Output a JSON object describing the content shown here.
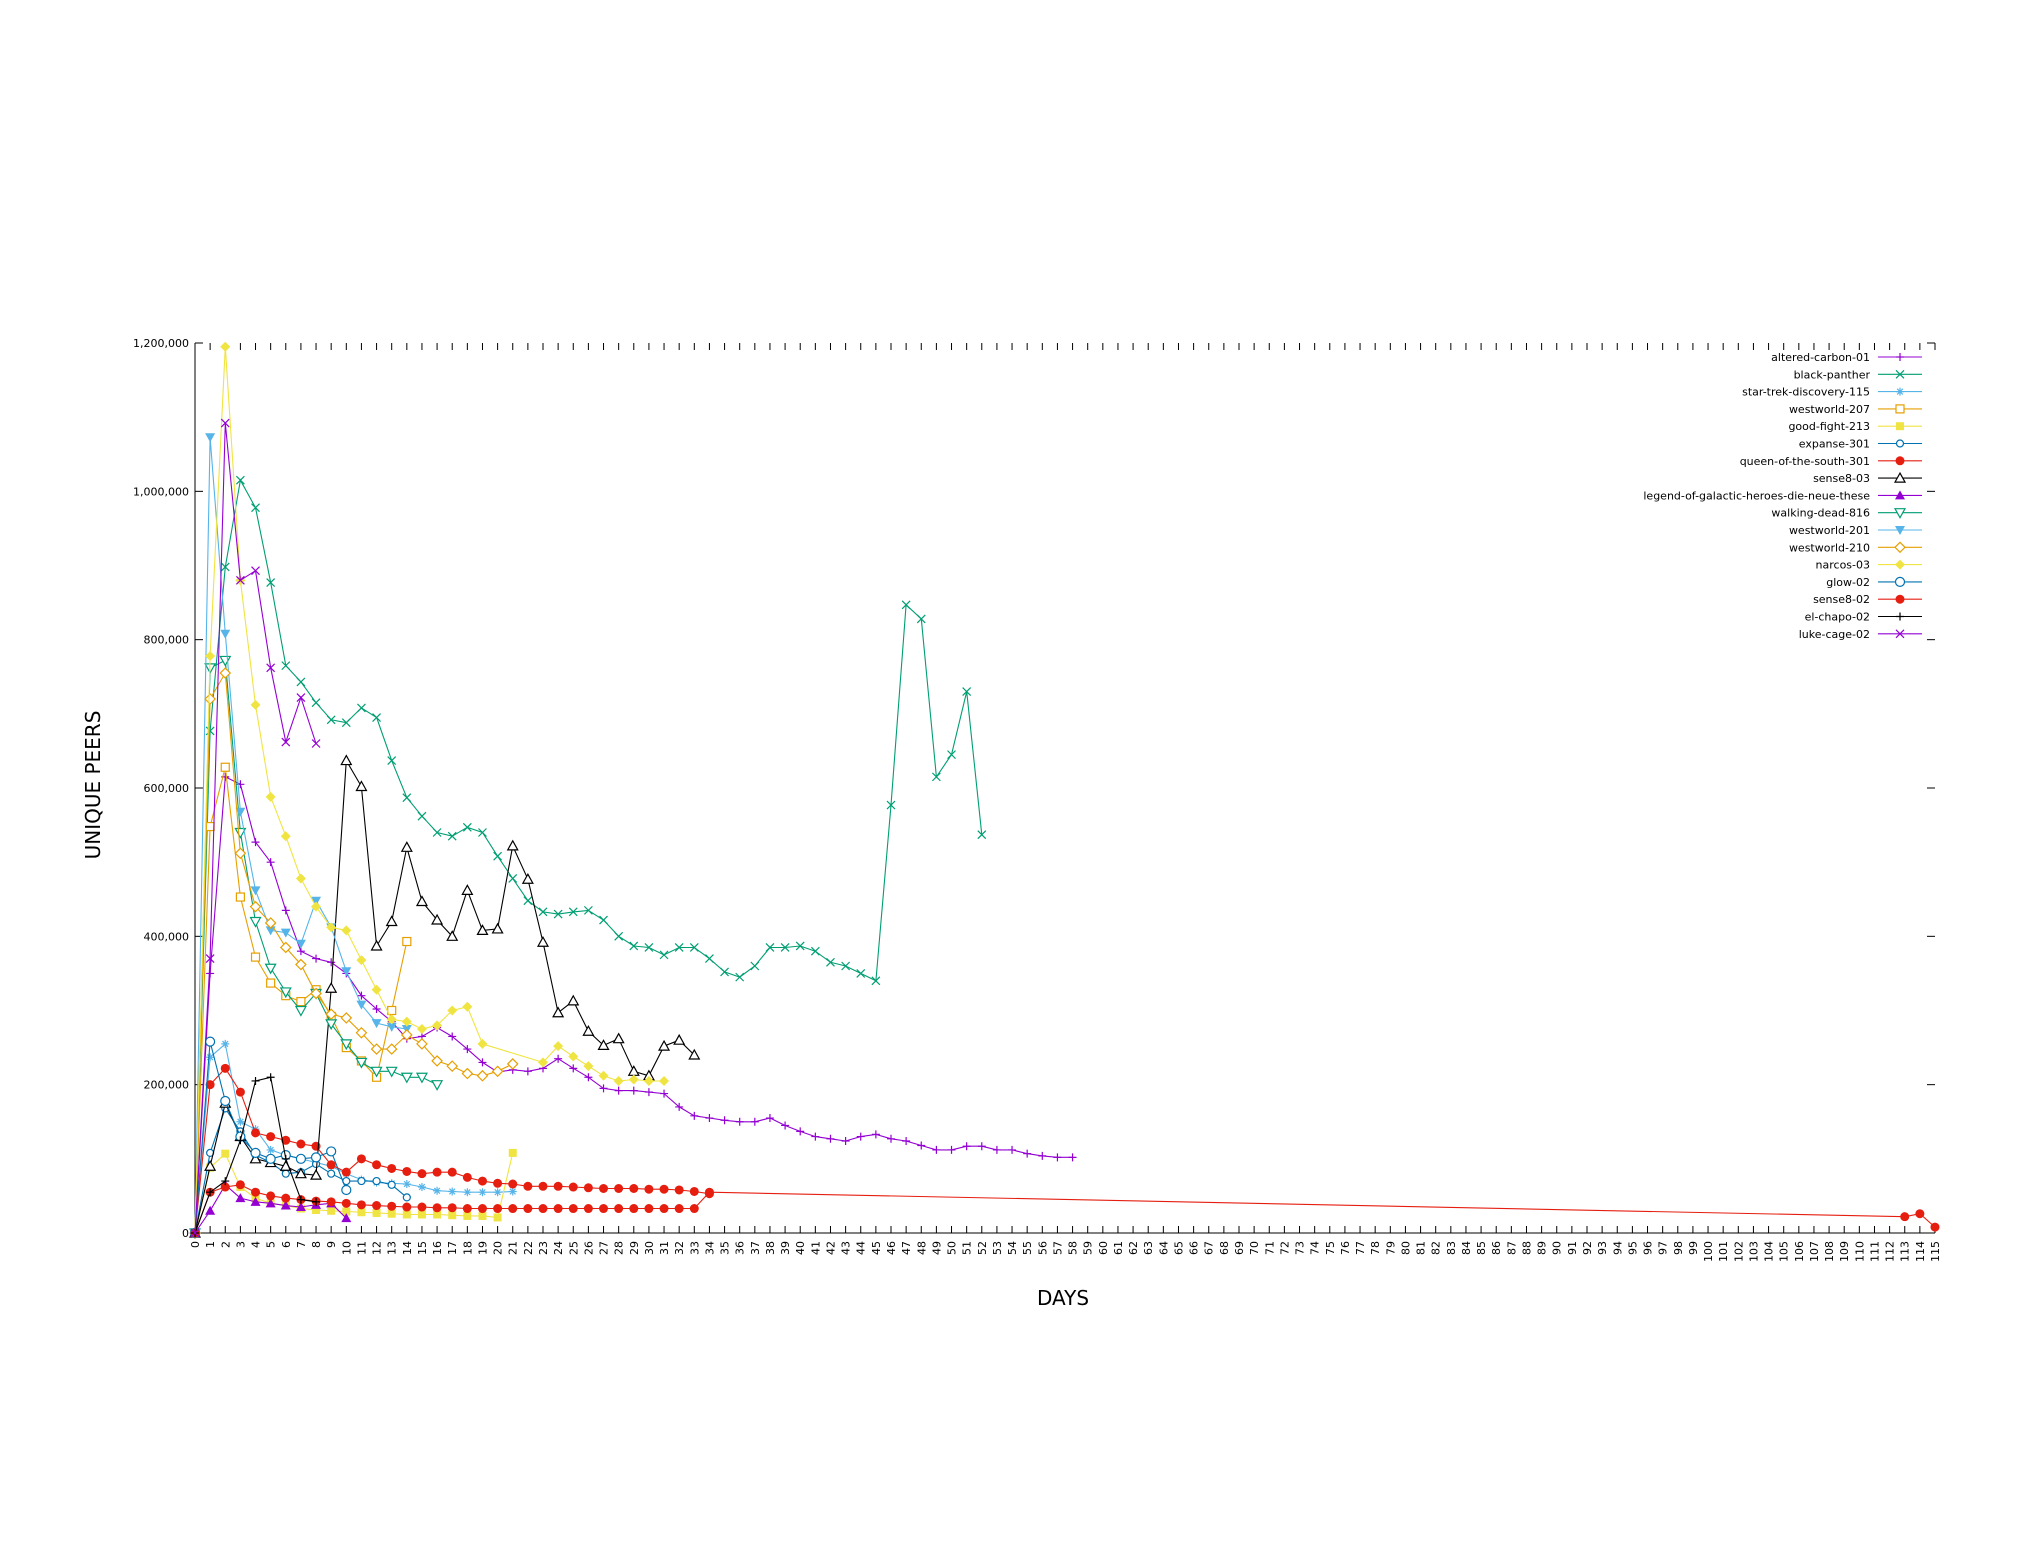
{
  "chart_data": {
    "type": "line",
    "title": "",
    "xlabel": "DAYS",
    "ylabel": "UNIQUE PEERS",
    "xlim": [
      0,
      115
    ],
    "ylim": [
      0,
      1200000
    ],
    "yticks": [
      0,
      200000,
      400000,
      600000,
      800000,
      1000000,
      1200000
    ],
    "ytick_labels": [
      "0",
      "200,000",
      "400,000",
      "600,000",
      "800,000",
      "1,000,000",
      "1,200,000"
    ],
    "xticks": [
      0,
      1,
      2,
      3,
      4,
      5,
      6,
      7,
      8,
      9,
      10,
      11,
      12,
      13,
      14,
      15,
      16,
      17,
      18,
      19,
      20,
      21,
      22,
      23,
      24,
      25,
      26,
      27,
      28,
      29,
      30,
      31,
      32,
      33,
      34,
      35,
      36,
      37,
      38,
      39,
      40,
      41,
      42,
      43,
      44,
      45,
      46,
      47,
      48,
      49,
      50,
      51,
      52,
      53,
      54,
      55,
      56,
      57,
      58,
      59,
      60,
      61,
      62,
      63,
      64,
      65,
      66,
      67,
      68,
      69,
      70,
      71,
      72,
      73,
      74,
      75,
      76,
      77,
      78,
      79,
      80,
      81,
      82,
      83,
      84,
      85,
      86,
      87,
      88,
      89,
      90,
      91,
      92,
      93,
      94,
      95,
      96,
      97,
      98,
      99,
      100,
      101,
      102,
      103,
      104,
      105,
      106,
      107,
      108,
      109,
      110,
      111,
      112,
      113,
      114,
      115
    ],
    "legend_position": "top-right",
    "series": [
      {
        "name": "altered-carbon-01",
        "color": "#9400d3",
        "marker": "plus",
        "x": [
          0,
          1,
          2,
          3,
          4,
          5,
          6,
          7,
          8,
          9,
          10,
          11,
          12,
          13,
          14,
          15,
          16,
          17,
          18,
          19,
          20,
          21,
          22,
          23,
          24,
          25,
          26,
          27,
          28,
          29,
          30,
          31,
          32,
          33,
          34,
          35,
          36,
          37,
          38,
          39,
          40,
          41,
          42,
          43,
          44,
          45,
          46,
          47,
          48,
          49,
          50,
          51,
          52,
          53,
          54,
          55,
          56,
          57,
          58
        ],
        "y": [
          0,
          350000,
          615000,
          605000,
          527000,
          500000,
          435000,
          380000,
          370000,
          365000,
          350000,
          320000,
          302000,
          285000,
          262000,
          265000,
          277000,
          265000,
          248000,
          230000,
          217000,
          220000,
          218000,
          222000,
          235000,
          222000,
          210000,
          195000,
          192000,
          192000,
          190000,
          188000,
          170000,
          158000,
          155000,
          152000,
          150000,
          150000,
          155000,
          145000,
          137000,
          130000,
          127000,
          124000,
          130000,
          133000,
          127000,
          124000,
          118000,
          112000,
          112000,
          117000,
          117000,
          112000,
          112000,
          107000,
          104000,
          102000,
          102000
        ]
      },
      {
        "name": "black-panther",
        "color": "#009e73",
        "marker": "x",
        "x": [
          0,
          1,
          2,
          3,
          4,
          5,
          6,
          7,
          8,
          9,
          10,
          11,
          12,
          13,
          14,
          15,
          16,
          17,
          18,
          19,
          20,
          21,
          22,
          23,
          24,
          25,
          26,
          27,
          28,
          29,
          30,
          31,
          32,
          33,
          34,
          35,
          36,
          37,
          38,
          39,
          40,
          41,
          42,
          43,
          44,
          45,
          46,
          47,
          48,
          49,
          50,
          51,
          52
        ],
        "y": [
          0,
          677000,
          898000,
          1015000,
          978000,
          877000,
          765000,
          743000,
          715000,
          692000,
          688000,
          708000,
          695000,
          637000,
          587000,
          562000,
          540000,
          535000,
          547000,
          540000,
          508000,
          478000,
          448000,
          433000,
          430000,
          433000,
          435000,
          422000,
          400000,
          387000,
          385000,
          375000,
          385000,
          385000,
          370000,
          352000,
          345000,
          360000,
          385000,
          385000,
          387000,
          380000,
          365000,
          360000,
          350000,
          340000,
          577000,
          847000,
          828000,
          615000,
          645000,
          730000,
          537000
        ]
      },
      {
        "name": "star-trek-discovery-115",
        "color": "#56b4e9",
        "marker": "star",
        "x": [
          0,
          1,
          2,
          3,
          4,
          5,
          6,
          7,
          8,
          9,
          10,
          11,
          12,
          13,
          14,
          15,
          16,
          17,
          18,
          19,
          20,
          21
        ],
        "y": [
          0,
          237000,
          255000,
          150000,
          140000,
          112000,
          105000,
          100000,
          95000,
          90000,
          80000,
          72000,
          68000,
          67000,
          66000,
          62000,
          57000,
          56000,
          55000,
          55000,
          55000,
          56000
        ]
      },
      {
        "name": "westworld-207",
        "color": "#e69f00",
        "marker": "square-open",
        "x": [
          0,
          1,
          2,
          3,
          4,
          5,
          6,
          7,
          8,
          9,
          10,
          11,
          12,
          13,
          14
        ],
        "y": [
          0,
          548000,
          628000,
          453000,
          372000,
          337000,
          320000,
          312000,
          328000,
          292000,
          250000,
          232000,
          210000,
          300000,
          393000
        ]
      },
      {
        "name": "good-fight-213",
        "color": "#f0e442",
        "marker": "square",
        "x": [
          0,
          1,
          2,
          3,
          4,
          5,
          6,
          7,
          8,
          9,
          10,
          11,
          12,
          13,
          14,
          15,
          16,
          17,
          18,
          19,
          20,
          21
        ],
        "y": [
          0,
          88000,
          107000,
          62000,
          47000,
          40000,
          37000,
          33000,
          31000,
          30000,
          29000,
          28000,
          27000,
          26000,
          25000,
          25000,
          25000,
          24000,
          23000,
          23000,
          21000,
          108000
        ]
      },
      {
        "name": "expanse-301",
        "color": "#0072b2",
        "marker": "circle-open-small",
        "x": [
          0,
          1,
          2,
          3,
          4,
          5,
          6,
          7,
          8,
          9,
          10,
          11,
          12,
          13,
          14
        ],
        "y": [
          0,
          108000,
          168000,
          137000,
          105000,
          95000,
          80000,
          82000,
          93000,
          80000,
          70000,
          70000,
          70000,
          65000,
          48000
        ]
      },
      {
        "name": "queen-of-the-south-301",
        "color": "#e51e10",
        "marker": "circle",
        "x": [
          0,
          1,
          2,
          3,
          4,
          5,
          6,
          7,
          8,
          9,
          10,
          11,
          12,
          13,
          14,
          15,
          16,
          17,
          18,
          19,
          20,
          21,
          22,
          23,
          24,
          25,
          26,
          27,
          28,
          29,
          30,
          31,
          32,
          33,
          34
        ],
        "y": [
          0,
          200000,
          222000,
          190000,
          135000,
          130000,
          125000,
          120000,
          117000,
          92000,
          82000,
          100000,
          92000,
          87000,
          83000,
          80000,
          82000,
          82000,
          75000,
          70000,
          67000,
          66000,
          63000,
          63000,
          63000,
          62000,
          61000,
          60000,
          60000,
          60000,
          59000,
          59000,
          58000,
          56000,
          53000
        ]
      },
      {
        "name": "sense8-03",
        "color": "#000000",
        "marker": "triangle-open",
        "x": [
          0,
          1,
          2,
          3,
          4,
          5,
          6,
          7,
          8,
          9,
          10,
          11,
          12,
          13,
          14,
          15,
          16,
          17,
          18,
          19,
          20,
          21,
          22,
          23,
          24,
          25,
          26,
          27,
          28,
          29,
          30,
          31,
          32,
          33
        ],
        "y": [
          0,
          90000,
          175000,
          130000,
          100000,
          95000,
          90000,
          80000,
          78000,
          330000,
          637000,
          602000,
          387000,
          420000,
          520000,
          447000,
          422000,
          400000,
          462000,
          408000,
          410000,
          522000,
          477000,
          392000,
          297000,
          313000,
          272000,
          253000,
          262000,
          218000,
          212000,
          252000,
          260000,
          240000
        ]
      },
      {
        "name": "legend-of-galactic-heroes-die-neue-these",
        "color": "#9400d3",
        "marker": "triangle",
        "x": [
          0,
          1,
          2,
          3,
          4,
          5,
          6,
          7,
          8,
          9,
          10
        ],
        "y": [
          0,
          30000,
          65000,
          47000,
          42000,
          40000,
          37000,
          35000,
          38000,
          40000,
          20000
        ]
      },
      {
        "name": "walking-dead-816",
        "color": "#009e73",
        "marker": "triangle-down-open",
        "x": [
          0,
          1,
          2,
          3,
          4,
          5,
          6,
          7,
          8,
          9,
          10,
          11,
          12,
          13,
          14,
          15,
          16
        ],
        "y": [
          0,
          762000,
          772000,
          540000,
          420000,
          357000,
          325000,
          300000,
          323000,
          282000,
          255000,
          230000,
          218000,
          218000,
          210000,
          210000,
          200000
        ]
      },
      {
        "name": "westworld-201",
        "color": "#56b4e9",
        "marker": "triangle-down",
        "x": [
          0,
          1,
          2,
          3,
          4,
          5,
          6,
          7,
          8,
          9,
          10,
          11,
          12,
          13,
          14
        ],
        "y": [
          0,
          1073000,
          808000,
          568000,
          462000,
          408000,
          405000,
          390000,
          448000,
          412000,
          353000,
          308000,
          283000,
          278000,
          275000
        ]
      },
      {
        "name": "westworld-210",
        "color": "#e69f00",
        "marker": "diamond-open",
        "x": [
          0,
          1,
          2,
          3,
          4,
          5,
          6,
          7,
          8,
          9,
          10,
          11,
          12,
          13,
          14,
          15,
          16,
          17,
          18,
          19,
          20,
          21
        ],
        "y": [
          0,
          720000,
          755000,
          512000,
          440000,
          418000,
          385000,
          362000,
          323000,
          295000,
          290000,
          270000,
          248000,
          248000,
          267000,
          255000,
          232000,
          225000,
          215000,
          212000,
          218000,
          228000
        ]
      },
      {
        "name": "narcos-03",
        "color": "#f0e442",
        "marker": "diamond",
        "x": [
          0,
          1,
          2,
          3,
          4,
          5,
          6,
          7,
          8,
          9,
          10,
          11,
          12,
          13,
          14,
          15,
          16,
          17,
          18,
          19,
          23,
          24,
          25,
          26,
          27,
          28,
          29,
          30,
          31
        ],
        "y": [
          0,
          778000,
          1195000,
          880000,
          712000,
          588000,
          535000,
          478000,
          440000,
          412000,
          408000,
          368000,
          328000,
          288000,
          285000,
          275000,
          280000,
          300000,
          305000,
          255000,
          230000,
          252000,
          238000,
          225000,
          212000,
          205000,
          207000,
          205000,
          205000
        ]
      },
      {
        "name": "glow-02",
        "color": "#0072b2",
        "marker": "circle-open",
        "x": [
          0,
          1,
          2,
          3,
          4,
          5,
          6,
          7,
          8,
          9,
          10
        ],
        "y": [
          0,
          258000,
          178000,
          130000,
          108000,
          100000,
          105000,
          100000,
          102000,
          110000,
          58000
        ]
      },
      {
        "name": "sense8-02",
        "color": "#e51e10",
        "marker": "circle",
        "x": [
          0,
          1,
          2,
          3,
          4,
          5,
          6,
          7,
          8,
          9,
          10,
          11,
          12,
          13,
          14,
          15,
          16,
          17,
          18,
          19,
          20,
          21,
          22,
          23,
          24,
          25,
          26,
          27,
          28,
          29,
          30,
          31,
          32,
          33,
          34,
          113,
          114,
          115
        ],
        "y": [
          0,
          55000,
          62000,
          65000,
          55000,
          50000,
          47000,
          45000,
          43000,
          42000,
          40000,
          38000,
          37000,
          36000,
          35000,
          35000,
          34000,
          34000,
          33000,
          33000,
          33000,
          33000,
          33000,
          33000,
          33000,
          33000,
          33000,
          33000,
          33000,
          33000,
          33000,
          33000,
          33000,
          33000,
          55000,
          22000,
          26000,
          8000
        ]
      },
      {
        "name": "el-chapo-02",
        "color": "#000000",
        "marker": "plus",
        "x": [
          0,
          1,
          2,
          3,
          4,
          5,
          6,
          7,
          8
        ],
        "y": [
          0,
          55000,
          70000,
          125000,
          205000,
          210000,
          100000,
          45000,
          42000
        ]
      },
      {
        "name": "luke-cage-02",
        "color": "#9400d3",
        "marker": "x",
        "x": [
          0,
          1,
          2,
          3,
          4,
          5,
          6,
          7,
          8
        ],
        "y": [
          0,
          370000,
          1092000,
          880000,
          893000,
          762000,
          662000,
          722000,
          660000
        ]
      }
    ]
  }
}
